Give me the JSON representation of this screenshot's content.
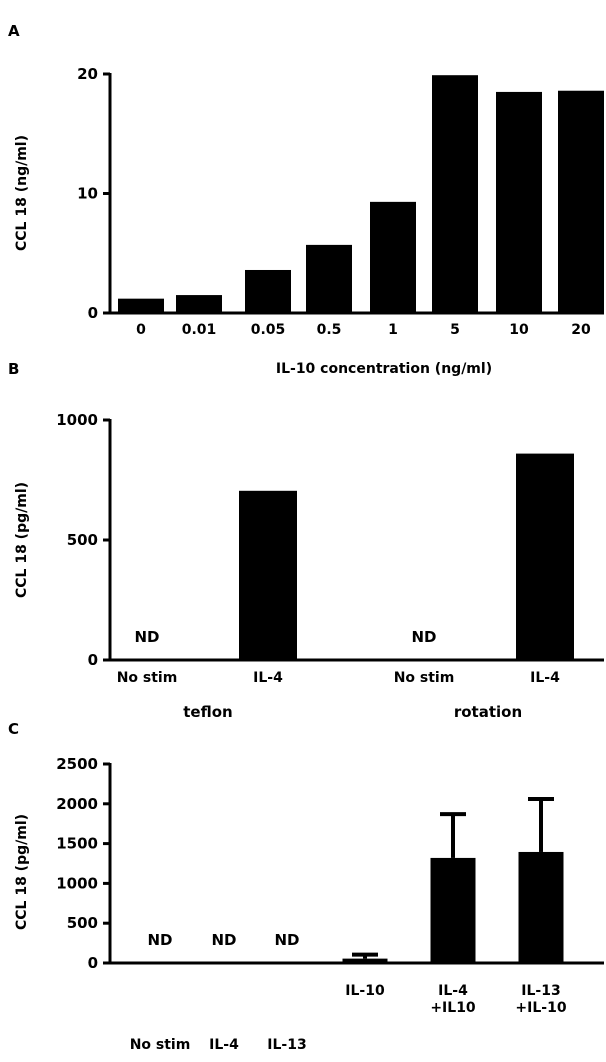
{
  "chart_data": [
    {
      "panel": "A",
      "type": "bar",
      "title": "",
      "xlabel": "IL-10 concentration (ng/ml)",
      "ylabel": "CCL 18 (ng/ml)",
      "ylim": [
        0,
        20
      ],
      "yticks": [
        0,
        10,
        20
      ],
      "categories": [
        "0",
        "0.01",
        "0.05",
        "0.5",
        "1",
        "5",
        "10",
        "20"
      ],
      "values": [
        1.2,
        1.5,
        3.6,
        5.7,
        9.3,
        19.9,
        18.5,
        18.6
      ],
      "grid": false,
      "legend": "none",
      "bar_color": "#000000"
    },
    {
      "panel": "B",
      "type": "bar",
      "title": "",
      "xlabel": "",
      "ylabel": "CCL 18 (pg/ml)",
      "ylim": [
        0,
        1000
      ],
      "yticks": [
        0,
        500,
        1000
      ],
      "categories": [
        "No stim",
        "IL-4",
        "No stim",
        "IL-4"
      ],
      "groups": [
        {
          "label": "teflon",
          "categories": [
            0,
            1
          ]
        },
        {
          "label": "rotation",
          "categories": [
            2,
            3
          ]
        }
      ],
      "values": [
        null,
        705,
        null,
        860
      ],
      "annotations": [
        "ND",
        "",
        "ND",
        ""
      ],
      "grid": false,
      "legend": "none",
      "bar_color": "#000000"
    },
    {
      "panel": "C",
      "type": "bar",
      "title": "",
      "xlabel": "",
      "ylabel": "CCL 18 (pg/ml)",
      "ylim": [
        0,
        2500
      ],
      "yticks": [
        0,
        500,
        1000,
        1500,
        2000,
        2500
      ],
      "categories": [
        "No stim",
        "IL-4",
        "IL-13",
        "IL-10",
        "IL-4 +IL10",
        "IL-13 +IL-10"
      ],
      "values": [
        null,
        null,
        null,
        55,
        1320,
        1395
      ],
      "error_upper": [
        null,
        null,
        null,
        105,
        1870,
        2060
      ],
      "annotations": [
        "ND",
        "ND",
        "ND",
        "",
        "",
        ""
      ],
      "grid": false,
      "legend": "none",
      "bar_color": "#000000"
    }
  ]
}
